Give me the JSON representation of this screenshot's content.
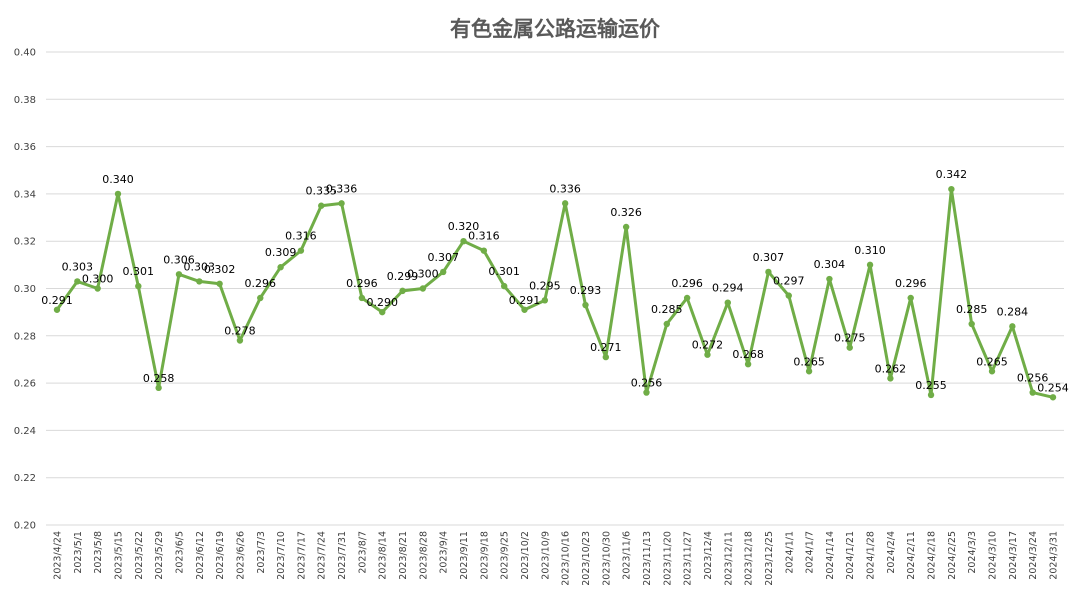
{
  "chart_data": {
    "type": "line",
    "title": "有色金属公路运输运价",
    "xlabel": "",
    "ylabel": "",
    "ylim": [
      0.2,
      0.4
    ],
    "ytick_labels": [
      "0.20",
      "0.22",
      "0.24",
      "0.26",
      "0.28",
      "0.30",
      "0.32",
      "0.34",
      "0.36",
      "0.38",
      "0.40"
    ],
    "grid": true,
    "legend": "none",
    "line_color": "#70ad47",
    "categories": [
      "2023/4/24",
      "2023/5/1",
      "2023/5/8",
      "2023/5/15",
      "2023/5/22",
      "2023/5/29",
      "2023/6/5",
      "2023/6/12",
      "2023/6/19",
      "2023/6/26",
      "2023/7/3",
      "2023/7/10",
      "2023/7/17",
      "2023/7/24",
      "2023/7/31",
      "2023/8/7",
      "2023/8/14",
      "2023/8/21",
      "2023/8/28",
      "2023/9/4",
      "2023/9/11",
      "2023/9/18",
      "2023/9/25",
      "2023/10/2",
      "2023/10/9",
      "2023/10/16",
      "2023/10/23",
      "2023/10/30",
      "2023/11/6",
      "2023/11/13",
      "2023/11/20",
      "2023/11/27",
      "2023/12/4",
      "2023/12/11",
      "2023/12/18",
      "2023/12/25",
      "2024/1/1",
      "2024/1/7",
      "2024/1/14",
      "2024/1/21",
      "2024/1/28",
      "2024/2/4",
      "2024/2/11",
      "2024/2/18",
      "2024/2/25",
      "2024/3/3",
      "2024/3/10",
      "2024/3/17",
      "2024/3/24",
      "2024/3/31"
    ],
    "values": [
      0.291,
      0.303,
      0.3,
      0.34,
      0.301,
      0.258,
      0.306,
      0.303,
      0.302,
      0.278,
      0.296,
      0.309,
      0.316,
      0.335,
      0.336,
      0.296,
      0.29,
      0.299,
      0.3,
      0.307,
      0.32,
      0.316,
      0.301,
      0.291,
      0.295,
      0.336,
      0.293,
      0.271,
      0.326,
      0.256,
      0.285,
      0.296,
      0.272,
      0.294,
      0.268,
      0.307,
      0.297,
      0.265,
      0.304,
      0.275,
      0.31,
      0.262,
      0.296,
      0.255,
      0.342,
      0.285,
      0.265,
      0.284,
      0.256,
      0.254
    ],
    "data_labels": [
      "0.291",
      "0.303",
      "0.300",
      "0.340",
      "0.301",
      "0.258",
      "0.306",
      "0.303",
      "0.302",
      "0.278",
      "0.296",
      "0.309",
      "0.316",
      "0.335",
      "0.336",
      "0.296",
      "0.290",
      "0.299",
      "0.300",
      "0.307",
      "0.320",
      "0.316",
      "0.301",
      "0.291",
      "0.295",
      "0.336",
      "0.293",
      "0.271",
      "0.326",
      "0.256",
      "0.285",
      "0.296",
      "0.272",
      "0.294",
      "0.268",
      "0.307",
      "0.297",
      "0.265",
      "0.304",
      "0.275",
      "0.310",
      "0.262",
      "0.296",
      "0.255",
      "0.342",
      "0.285",
      "0.265",
      "0.284",
      "0.256",
      "0.254"
    ]
  }
}
